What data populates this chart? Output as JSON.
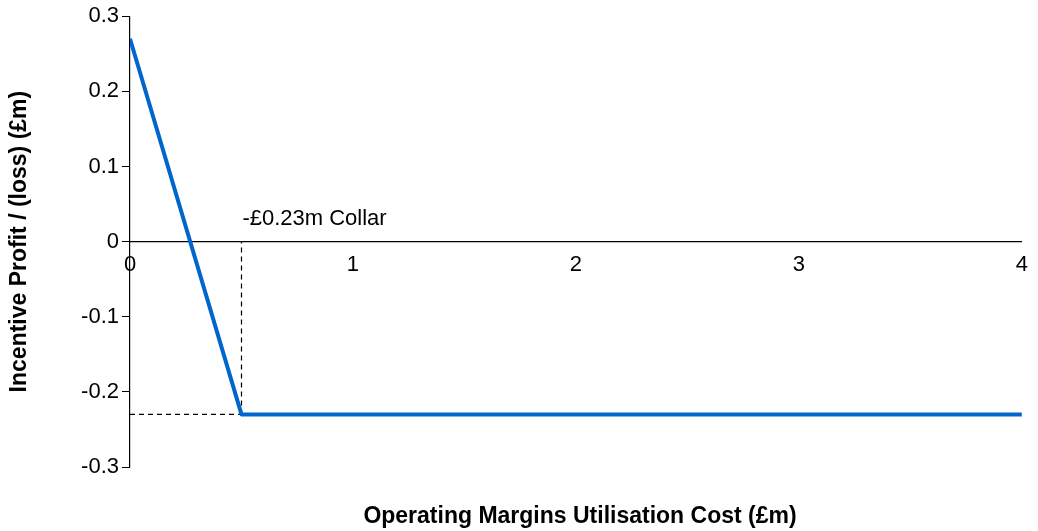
{
  "chart_data": {
    "type": "line",
    "xlabel": "Operating Margins Utilisation Cost (£m)",
    "ylabel": "Incentive Profit / (loss) (£m)",
    "xlim": [
      0,
      4
    ],
    "xticks": [
      0,
      1,
      2,
      3,
      4
    ],
    "ylim": [
      -0.3,
      0.3
    ],
    "yticks": [
      -0.3,
      -0.2,
      -0.1,
      0,
      0.1,
      0.2,
      0.3
    ],
    "grid": false,
    "legend": false,
    "marker": "none",
    "series": [
      {
        "color": "#0066cc",
        "x": [
          0,
          0.5,
          4
        ],
        "values": [
          0.27,
          -0.23,
          -0.23
        ],
        "line_style": "solid"
      },
      {
        "color": "#000000",
        "x": [
          0.5,
          0.5
        ],
        "values": [
          -0.23,
          0
        ],
        "line_style": "dashed"
      },
      {
        "color": "#000000",
        "x": [
          0,
          0.5
        ],
        "values": [
          -0.23,
          -0.23
        ],
        "line_style": "dashed"
      }
    ],
    "annotations": [
      "-£0.23m Collar"
    ]
  }
}
